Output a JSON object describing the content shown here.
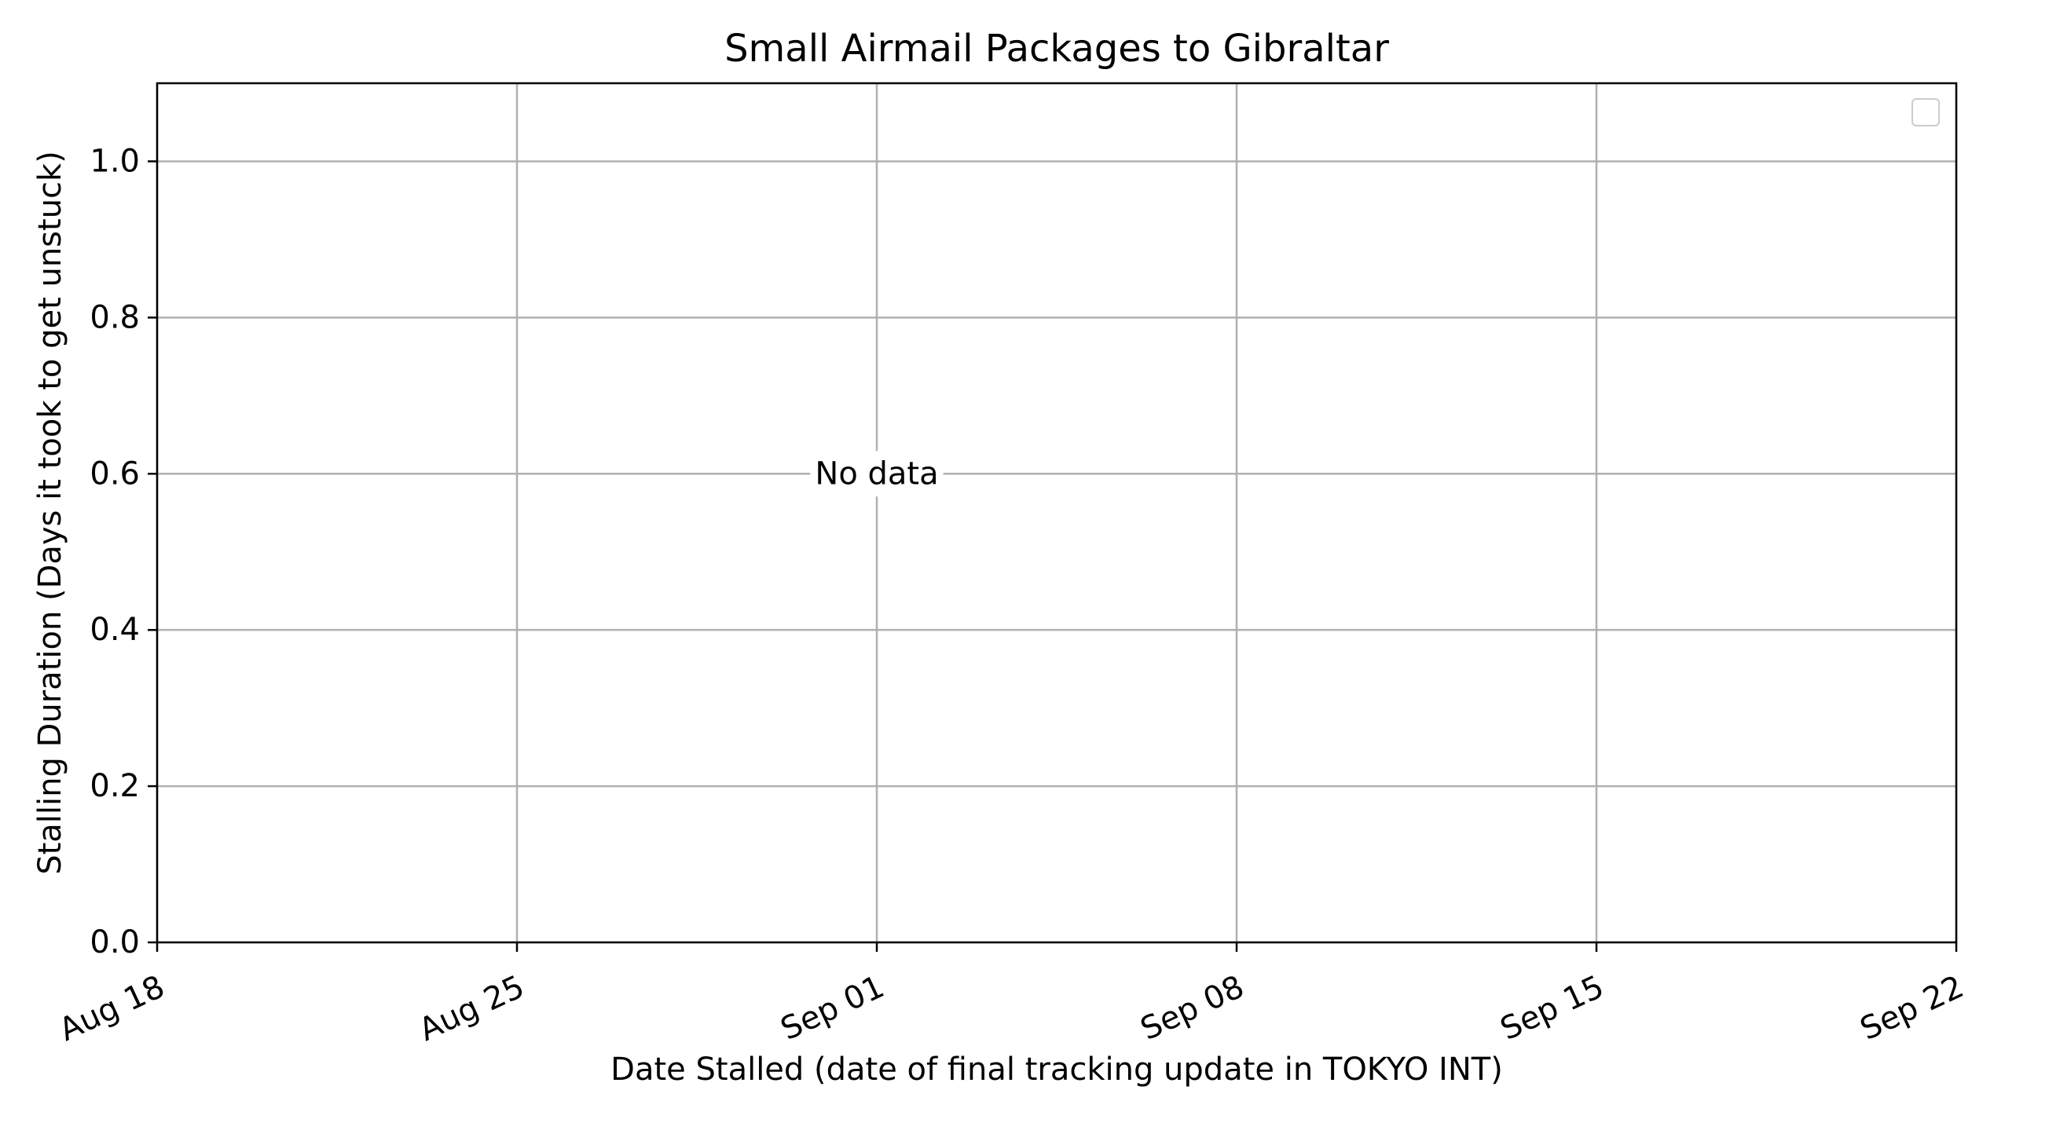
{
  "chart_data": {
    "type": "scatter",
    "title": "Small Airmail Packages to Gibraltar",
    "xlabel": "Date Stalled (date of final tracking update in TOKYO INT)",
    "ylabel": "Stalling Duration (Days it took to get unstuck)",
    "xlim": [
      "2025-08-18",
      "2025-09-22"
    ],
    "ylim": [
      0,
      1.1
    ],
    "x_ticks": [
      {
        "value": "2025-08-18",
        "label": "Aug 18"
      },
      {
        "value": "2025-08-25",
        "label": "Aug 25"
      },
      {
        "value": "2025-09-01",
        "label": "Sep 01"
      },
      {
        "value": "2025-09-08",
        "label": "Sep 08"
      },
      {
        "value": "2025-09-15",
        "label": "Sep 15"
      },
      {
        "value": "2025-09-22",
        "label": "Sep 22"
      }
    ],
    "y_ticks": [
      {
        "value": 0.0,
        "label": "0.0"
      },
      {
        "value": 0.2,
        "label": "0.2"
      },
      {
        "value": 0.4,
        "label": "0.4"
      },
      {
        "value": 0.6,
        "label": "0.6"
      },
      {
        "value": 0.8,
        "label": "0.8"
      },
      {
        "value": 1.0,
        "label": "1.0"
      }
    ],
    "grid": true,
    "legend": {
      "position": "top-right",
      "entries": []
    },
    "annotation": {
      "text": "No data",
      "x": "2025-09-01",
      "y": 0.6
    },
    "series": [],
    "colors": {
      "grid": "#b0b0b0",
      "axes": "#000000",
      "text": "#000000",
      "legend_border": "#cccccc"
    }
  }
}
